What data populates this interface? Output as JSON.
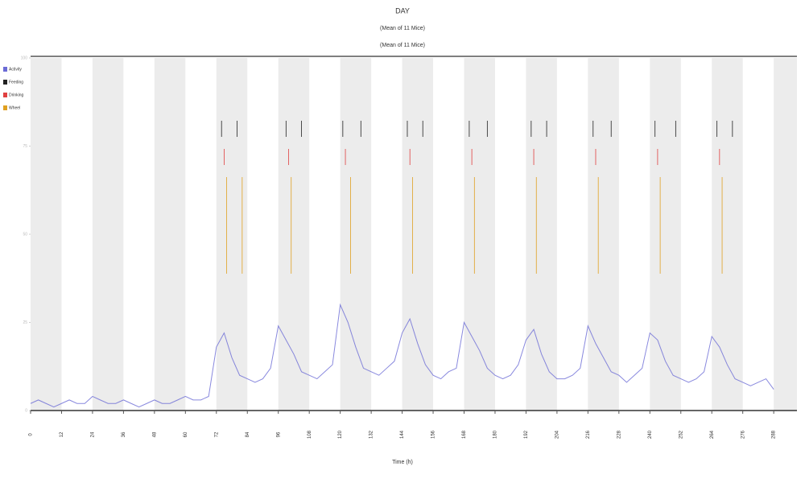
{
  "chart_data": {
    "type": "line",
    "title": "DAY",
    "subtitles": [
      "(Mean of 11 Mice)",
      "(Mean of 11 Mice)"
    ],
    "x_label": "Time (h)",
    "xlim": [
      0,
      297
    ],
    "ylim": [
      0,
      100
    ],
    "xticks": [
      0,
      12,
      24,
      36,
      48,
      60,
      72,
      84,
      96,
      108,
      120,
      132,
      144,
      156,
      168,
      180,
      192,
      204,
      216,
      228,
      240,
      252,
      264,
      276,
      288
    ],
    "yticks": [
      0,
      25,
      50,
      75,
      100
    ],
    "shaded": [
      [
        0,
        12
      ],
      [
        24,
        36
      ],
      [
        48,
        60
      ],
      [
        72,
        84
      ],
      [
        96,
        108
      ],
      [
        120,
        132
      ],
      [
        144,
        156
      ],
      [
        168,
        180
      ],
      [
        192,
        204
      ],
      [
        216,
        228
      ],
      [
        240,
        252
      ],
      [
        264,
        276
      ],
      [
        288,
        297
      ]
    ],
    "x": [
      0,
      3,
      6,
      9,
      12,
      15,
      18,
      21,
      24,
      27,
      30,
      33,
      36,
      39,
      42,
      45,
      48,
      51,
      54,
      57,
      60,
      63,
      66,
      69,
      72,
      75,
      78,
      81,
      84,
      87,
      90,
      93,
      96,
      99,
      102,
      105,
      108,
      111,
      114,
      117,
      120,
      123,
      126,
      129,
      132,
      135,
      138,
      141,
      144,
      147,
      150,
      153,
      156,
      159,
      162,
      165,
      168,
      171,
      174,
      177,
      180,
      183,
      186,
      189,
      192,
      195,
      198,
      201,
      204,
      207,
      210,
      213,
      216,
      219,
      222,
      225,
      228,
      231,
      234,
      237,
      240,
      243,
      246,
      249,
      252,
      255,
      258,
      261,
      264,
      267,
      270,
      273,
      276,
      279,
      282,
      285,
      288
    ],
    "series": [
      {
        "name": "Activity",
        "color": "#6b6bd6",
        "values": [
          2,
          3,
          2,
          1,
          2,
          3,
          2,
          2,
          4,
          3,
          2,
          2,
          3,
          2,
          1,
          2,
          3,
          2,
          2,
          3,
          4,
          3,
          3,
          4,
          18,
          22,
          15,
          10,
          9,
          8,
          9,
          12,
          24,
          20,
          16,
          11,
          10,
          9,
          11,
          13,
          30,
          25,
          18,
          12,
          11,
          10,
          12,
          14,
          22,
          26,
          19,
          13,
          10,
          9,
          11,
          12,
          25,
          21,
          17,
          12,
          10,
          9,
          10,
          13,
          20,
          23,
          16,
          11,
          9,
          9,
          10,
          12,
          24,
          19,
          15,
          11,
          10,
          8,
          10,
          12,
          22,
          20,
          14,
          10,
          9,
          8,
          9,
          11,
          21,
          18,
          13,
          9,
          8,
          7,
          8,
          9,
          6
        ]
      }
    ],
    "events": [
      {
        "name": "Feeding",
        "color": "#222222",
        "x": [
          74,
          80,
          99,
          105,
          121,
          128,
          146,
          152,
          170,
          177,
          194,
          200,
          218,
          225,
          242,
          250,
          266,
          272
        ]
      },
      {
        "name": "Drinking",
        "color": "#e04040",
        "x": [
          75,
          100,
          122,
          147,
          171,
          195,
          219,
          243,
          267
        ]
      },
      {
        "name": "Wheel",
        "color": "#e0a020",
        "x": [
          76,
          82,
          101,
          124,
          148,
          172,
          196,
          220,
          244,
          268
        ]
      }
    ]
  }
}
